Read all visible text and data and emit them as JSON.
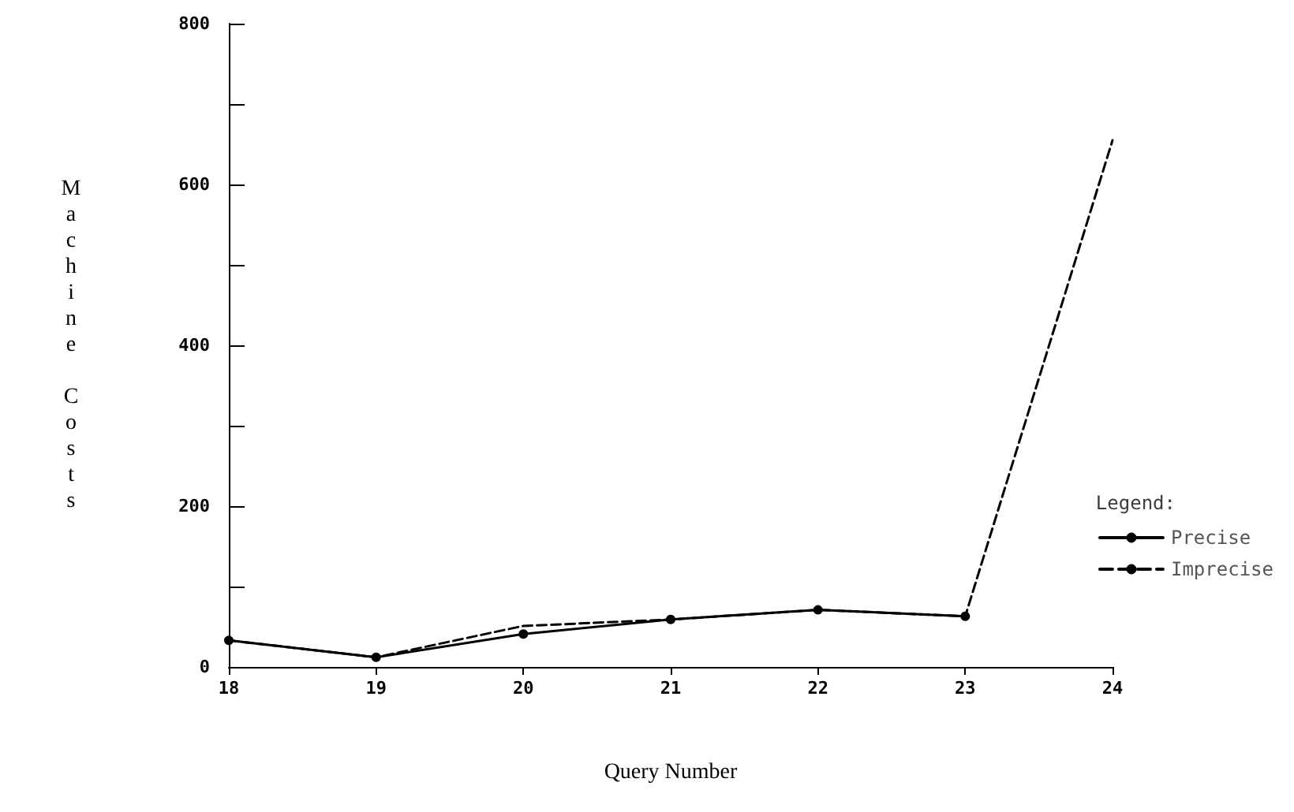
{
  "chart_data": {
    "type": "line",
    "xlabel": "Query Number",
    "ylabel": "Machine Costs",
    "legend_title": "Legend:",
    "categories": [
      "18",
      "19",
      "20",
      "21",
      "22",
      "23",
      "24"
    ],
    "series": [
      {
        "name": "Precise",
        "color": "#000000",
        "line_style": "solid",
        "marker": "circle",
        "values": [
          33,
          12,
          41,
          59,
          71,
          63,
          null
        ]
      },
      {
        "name": "Imprecise",
        "color": "#000000",
        "line_style": "dashed",
        "marker": "none",
        "values": [
          33,
          12,
          51,
          59,
          71,
          63,
          655
        ]
      }
    ],
    "ylim": [
      0,
      800
    ],
    "yticks": [
      0,
      {
        "value": 100,
        "label": null
      },
      200,
      {
        "value": 300,
        "label": null
      },
      400,
      {
        "value": 500,
        "label": null
      },
      600,
      {
        "value": 700,
        "label": null
      },
      800
    ],
    "grid": false,
    "legend": "right"
  }
}
